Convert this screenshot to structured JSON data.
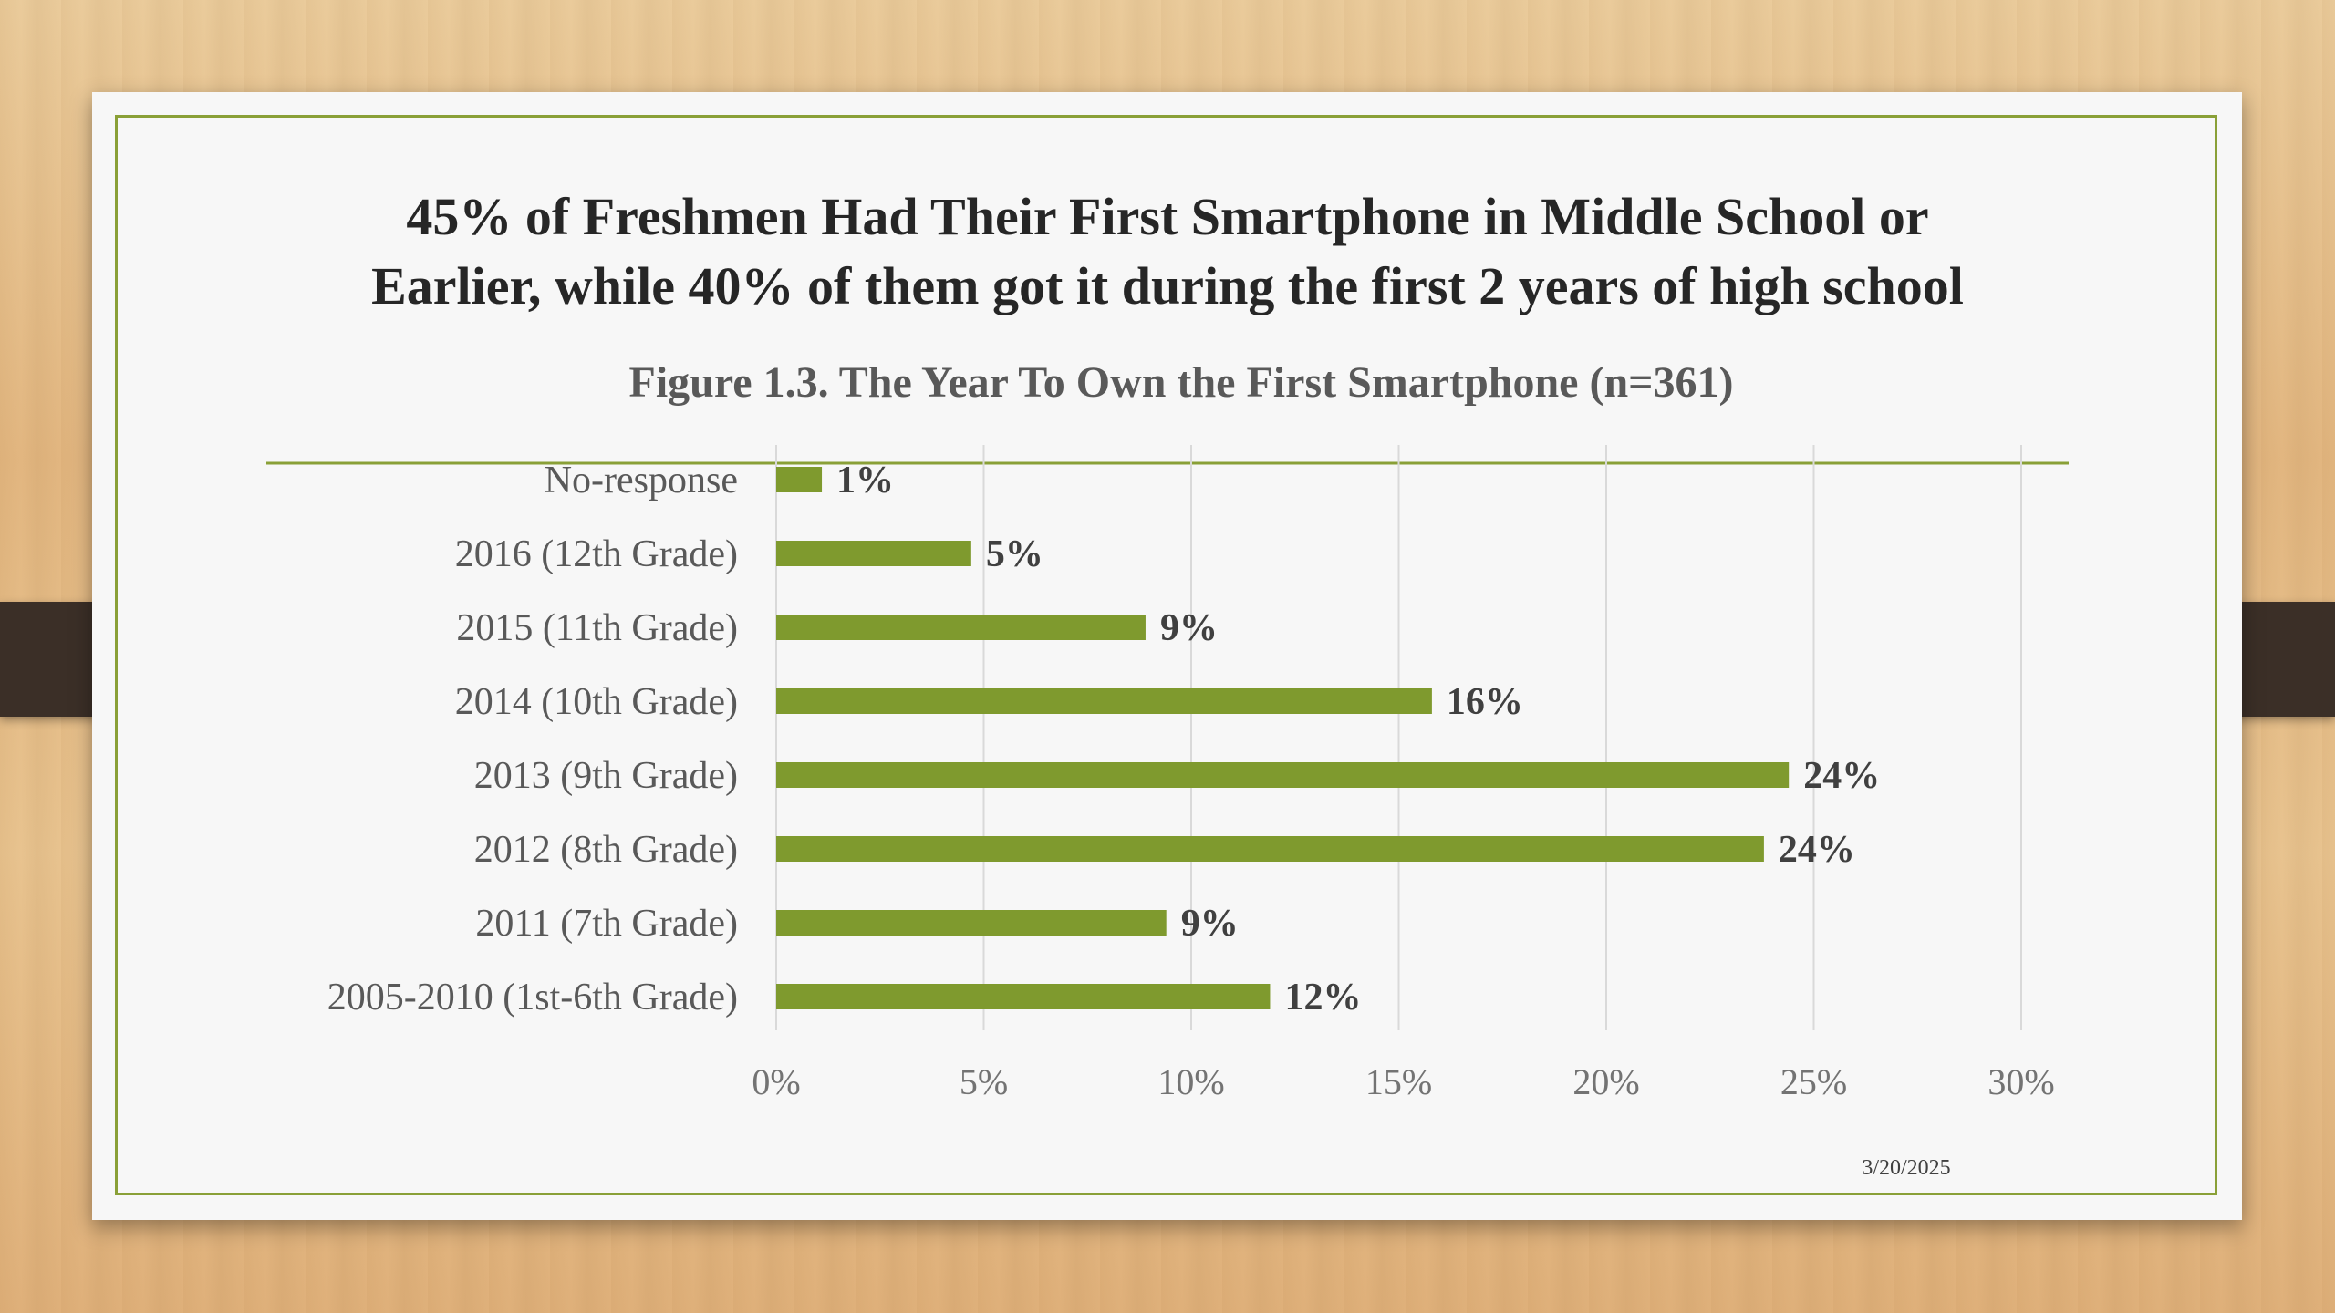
{
  "slide": {
    "headline_line1": "45% of Freshmen Had Their First Smartphone in Middle School or",
    "headline_line2": "Earlier, while 40% of them got it during the first 2 years of high school",
    "date": "3/20/2025"
  },
  "colors": {
    "bar": "#7f9a2e",
    "frame": "#8aa037",
    "tick_text": "#737373",
    "label_text": "#595959",
    "value_text": "#404040",
    "grid": "#d9d9d9"
  },
  "chart_data": {
    "type": "bar",
    "orientation": "horizontal",
    "title": "Figure 1.3. The Year To Own the First Smartphone (n=361)",
    "categories": [
      "No-response",
      "2016 (12th Grade)",
      "2015 (11th Grade)",
      "2014 (10th Grade)",
      "2013 (9th Grade)",
      "2012 (8th Grade)",
      "2011 (7th Grade)",
      "2005-2010 (1st-6th Grade)"
    ],
    "values": [
      1.1,
      4.7,
      8.9,
      15.8,
      24.4,
      23.8,
      9.4,
      11.9
    ],
    "data_labels": [
      "1%",
      "5%",
      "9%",
      "16%",
      "24%",
      "24%",
      "9%",
      "12%"
    ],
    "xlim": [
      0,
      30
    ],
    "ticks": [
      0,
      5,
      10,
      15,
      20,
      25,
      30
    ],
    "tick_labels": [
      "0%",
      "5%",
      "10%",
      "15%",
      "20%",
      "25%",
      "30%"
    ],
    "grid": true,
    "legend": "none"
  }
}
